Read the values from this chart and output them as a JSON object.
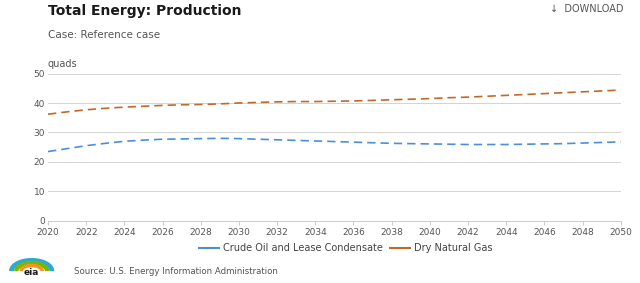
{
  "title": "Total Energy: Production",
  "subtitle": "Case: Reference case",
  "ylabel": "quads",
  "download_text": "↓  DOWNLOAD",
  "source_text": "Source: U.S. Energy Information Administration",
  "xlim": [
    2020,
    2050
  ],
  "ylim": [
    0,
    50
  ],
  "yticks": [
    0,
    10,
    20,
    30,
    40,
    50
  ],
  "xticks": [
    2020,
    2022,
    2024,
    2026,
    2028,
    2030,
    2032,
    2034,
    2036,
    2038,
    2040,
    2042,
    2044,
    2046,
    2048,
    2050
  ],
  "crude_oil": {
    "label": "Crude Oil and Lease Condensate",
    "color": "#4a90d9",
    "years": [
      2020,
      2021,
      2022,
      2023,
      2024,
      2025,
      2026,
      2027,
      2028,
      2029,
      2030,
      2031,
      2032,
      2033,
      2034,
      2035,
      2036,
      2037,
      2038,
      2039,
      2040,
      2041,
      2042,
      2043,
      2044,
      2045,
      2046,
      2047,
      2048,
      2049,
      2050
    ],
    "values": [
      23.5,
      24.5,
      25.5,
      26.3,
      27.0,
      27.4,
      27.7,
      27.8,
      27.9,
      28.0,
      27.9,
      27.7,
      27.5,
      27.3,
      27.1,
      26.9,
      26.7,
      26.5,
      26.3,
      26.2,
      26.1,
      26.0,
      25.9,
      25.9,
      25.9,
      26.0,
      26.1,
      26.2,
      26.4,
      26.6,
      26.8
    ]
  },
  "dry_gas": {
    "label": "Dry Natural Gas",
    "color": "#c0692a",
    "years": [
      2020,
      2021,
      2022,
      2023,
      2024,
      2025,
      2026,
      2027,
      2028,
      2029,
      2030,
      2031,
      2032,
      2033,
      2034,
      2035,
      2036,
      2037,
      2038,
      2039,
      2040,
      2041,
      2042,
      2043,
      2044,
      2045,
      2046,
      2047,
      2048,
      2049,
      2050
    ],
    "values": [
      36.2,
      37.0,
      37.7,
      38.2,
      38.6,
      38.9,
      39.2,
      39.4,
      39.5,
      39.7,
      40.0,
      40.2,
      40.4,
      40.5,
      40.5,
      40.6,
      40.7,
      40.9,
      41.1,
      41.3,
      41.5,
      41.8,
      42.0,
      42.3,
      42.6,
      42.9,
      43.2,
      43.5,
      43.8,
      44.1,
      44.4
    ]
  },
  "bg_color": "#ffffff",
  "plot_bg": "#ffffff",
  "grid_color": "#cccccc",
  "title_fontsize": 10,
  "subtitle_fontsize": 7.5,
  "tick_fontsize": 6.5,
  "legend_fontsize": 7,
  "ylabel_fontsize": 7
}
